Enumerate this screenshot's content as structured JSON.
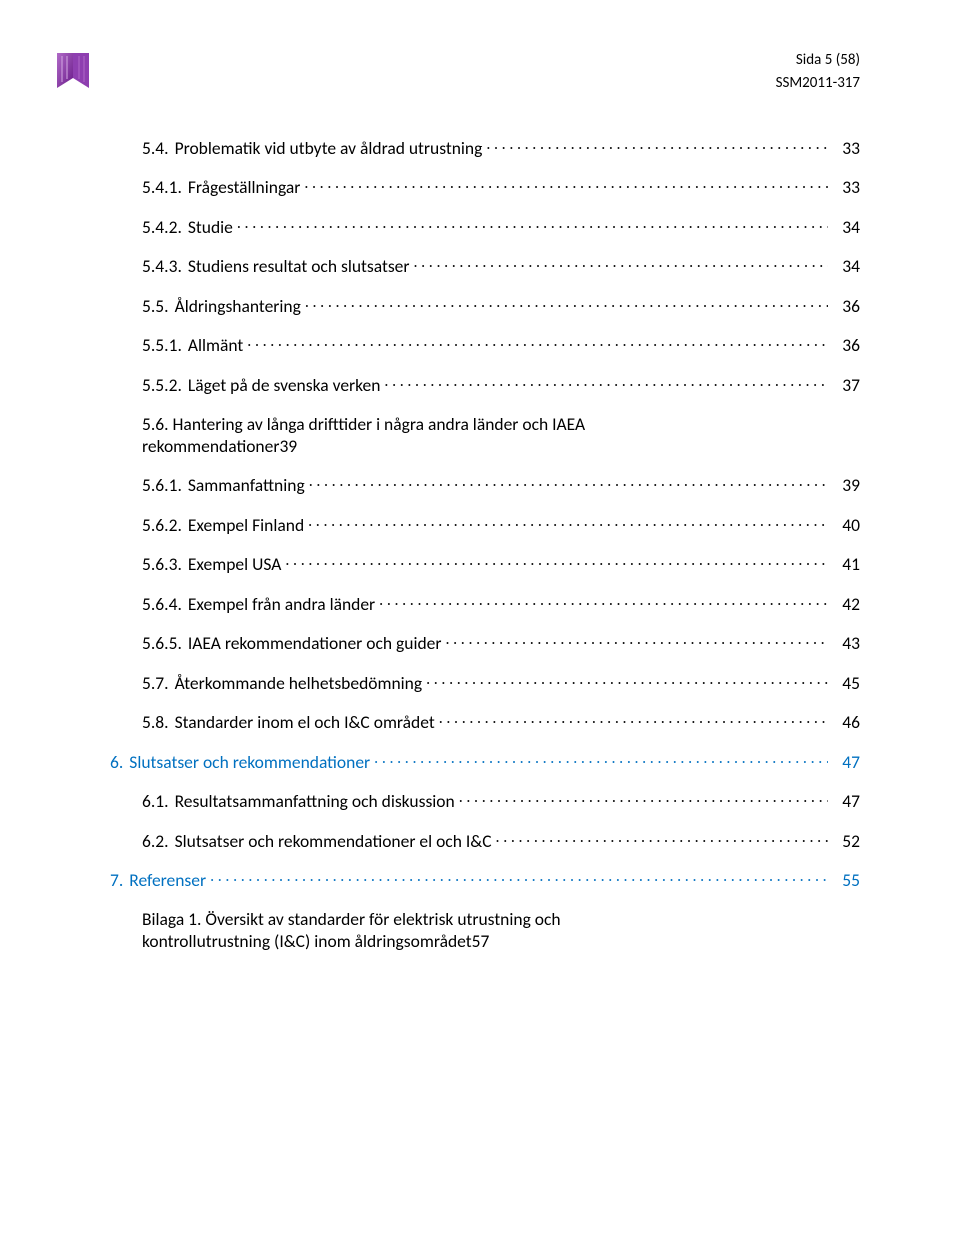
{
  "header": {
    "page_label": "Sida 5 (58)",
    "doc_id": "SSM2011-317"
  },
  "colors": {
    "text": "#000000",
    "link": "#0070c0",
    "background": "#ffffff",
    "logo_fill": "#8e44ad"
  },
  "toc": [
    {
      "indent": 1,
      "num": "5.4.",
      "title": "Problematik vid utbyte av åldrad utrustning",
      "page": "33",
      "blue": false
    },
    {
      "indent": 1,
      "num": "5.4.1.",
      "title": "Frågeställningar",
      "page": "33",
      "blue": false
    },
    {
      "indent": 1,
      "num": "5.4.2.",
      "title": "Studie",
      "page": "34",
      "blue": false
    },
    {
      "indent": 1,
      "num": "5.4.3.",
      "title": "Studiens resultat och slutsatser",
      "page": "34",
      "blue": false
    },
    {
      "indent": 1,
      "num": "5.5.",
      "title": "Åldringshantering",
      "page": "36",
      "blue": false
    },
    {
      "indent": 1,
      "num": "5.5.1.",
      "title": "Allmänt",
      "page": "36",
      "blue": false
    },
    {
      "indent": 1,
      "num": "5.5.2.",
      "title": "Läget på de svenska verken",
      "page": "37",
      "blue": false
    },
    {
      "indent": 1,
      "num": "5.6.",
      "title_line1": "Hantering av långa drifttider i några andra länder och IAEA",
      "title_line2": "rekommendationer",
      "page": "39",
      "blue": false,
      "wrap": true
    },
    {
      "indent": 1,
      "num": "5.6.1.",
      "title": "Sammanfattning",
      "page": "39",
      "blue": false
    },
    {
      "indent": 1,
      "num": "5.6.2.",
      "title": "Exempel Finland",
      "page": "40",
      "blue": false
    },
    {
      "indent": 1,
      "num": "5.6.3.",
      "title": "Exempel USA",
      "page": "41",
      "blue": false
    },
    {
      "indent": 1,
      "num": "5.6.4.",
      "title": "Exempel från andra länder",
      "page": "42",
      "blue": false
    },
    {
      "indent": 1,
      "num": "5.6.5.",
      "title": "IAEA rekommendationer och guider",
      "page": "43",
      "blue": false
    },
    {
      "indent": 1,
      "num": "5.7.",
      "title": "Återkommande helhetsbedömning",
      "page": "45",
      "blue": false
    },
    {
      "indent": 1,
      "num": "5.8.",
      "title": "Standarder inom el och I&C området",
      "page": "46",
      "blue": false
    },
    {
      "indent": 0,
      "num": "6.",
      "title": "Slutsatser och rekommendationer",
      "page": "47",
      "blue": true
    },
    {
      "indent": 1,
      "num": "6.1.",
      "title": "Resultatsammanfattning och diskussion",
      "page": "47",
      "blue": false
    },
    {
      "indent": 1,
      "num": "6.2.",
      "title": "Slutsatser och rekommendationer el och I&C",
      "page": "52",
      "blue": false
    },
    {
      "indent": 0,
      "num": "7.",
      "title": "Referenser",
      "page": "55",
      "blue": true
    },
    {
      "indent": 1,
      "num": "",
      "title_line1": "Bilaga 1. Översikt av standarder för elektrisk utrustning och",
      "title_line2": "kontrollutrustning (I&C) inom åldringsområdet",
      "page": "57",
      "blue": false,
      "wrap": true
    }
  ]
}
